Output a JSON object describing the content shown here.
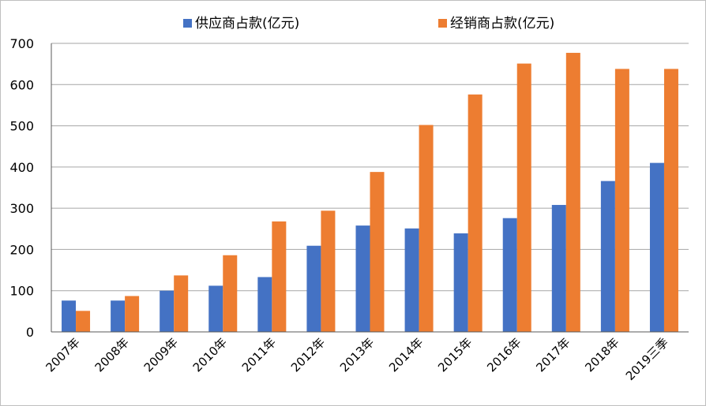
{
  "chart_data": {
    "type": "bar",
    "title": "",
    "xlabel": "",
    "ylabel": "",
    "ylim": [
      0,
      700
    ],
    "yticks": [
      "0",
      "100",
      "200",
      "300",
      "400",
      "500",
      "600",
      "700"
    ],
    "grid": true,
    "legend_position": "top",
    "categories": [
      "2007年",
      "2008年",
      "2009年",
      "2010年",
      "2011年",
      "2012年",
      "2013年",
      "2014年",
      "2015年",
      "2016年",
      "2017年",
      "2018年",
      "2019三季"
    ],
    "series": [
      {
        "name": "供应商占款(亿元)",
        "color": "#4472c4",
        "values": [
          76,
          76,
          100,
          112,
          133,
          209,
          258,
          251,
          239,
          276,
          308,
          366,
          410
        ]
      },
      {
        "name": "经销商占款(亿元)",
        "color": "#ed7d31",
        "values": [
          51,
          87,
          137,
          186,
          268,
          294,
          388,
          502,
          576,
          651,
          677,
          638,
          638
        ]
      }
    ]
  }
}
